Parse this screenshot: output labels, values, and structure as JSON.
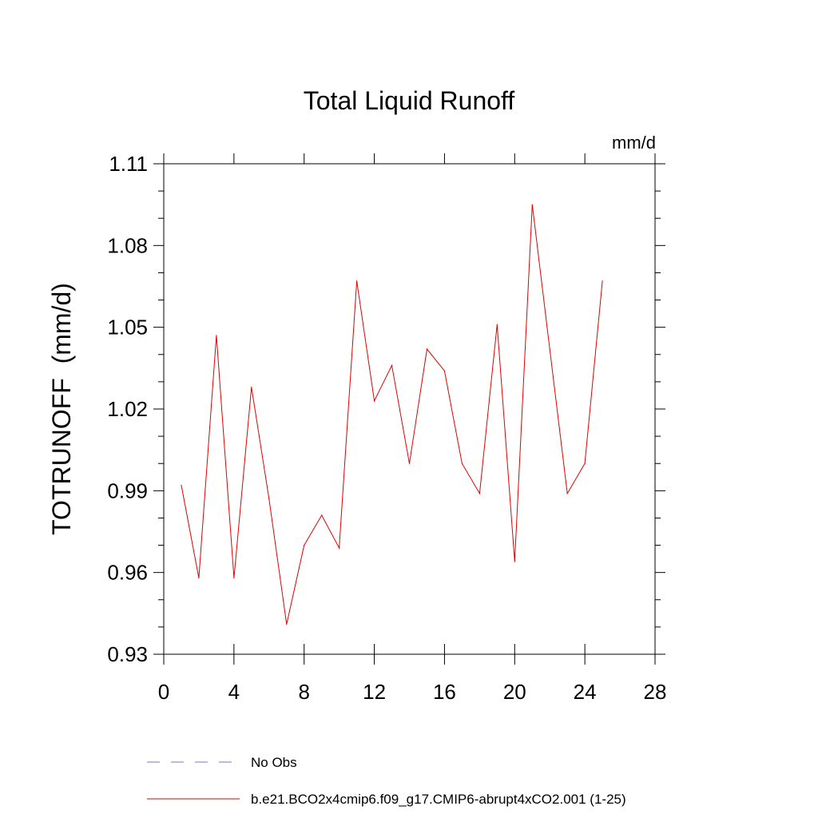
{
  "chart_data": {
    "type": "line",
    "title": "Total Liquid Runoff",
    "units_label": "mm/d",
    "ylabel": "TOTRUNOFF  (mm/d)",
    "xlabel": "",
    "xlim": [
      0,
      28
    ],
    "ylim": [
      0.93,
      1.11
    ],
    "x_ticks": [
      0,
      4,
      8,
      12,
      16,
      20,
      24,
      28
    ],
    "x_tick_labels": [
      "0",
      "4",
      "8",
      "12",
      "16",
      "20",
      "24",
      "28"
    ],
    "y_ticks": [
      0.93,
      0.96,
      0.99,
      1.02,
      1.05,
      1.08,
      1.11
    ],
    "y_tick_labels": [
      "0.93",
      "0.96",
      "0.99",
      "1.02",
      "1.05",
      "1.08",
      "1.11"
    ],
    "grid": false,
    "legend_position": "bottom",
    "series": [
      {
        "name": "b.e21.BCO2x4cmip6.f09_g17.CMIP6-abrupt4xCO2.001 (1-25)",
        "color": "#e00000",
        "style": "solid",
        "x": [
          1,
          2,
          3,
          4,
          5,
          6,
          7,
          8,
          9,
          10,
          11,
          12,
          13,
          14,
          15,
          16,
          17,
          18,
          19,
          20,
          21,
          22,
          23,
          24,
          25
        ],
        "y": [
          0.992,
          0.958,
          1.047,
          0.958,
          1.028,
          0.987,
          0.941,
          0.97,
          0.981,
          0.969,
          1.067,
          1.023,
          1.036,
          1.0,
          1.042,
          1.034,
          1.0,
          0.989,
          1.051,
          0.964,
          1.095,
          1.042,
          0.989,
          1.0,
          1.067
        ]
      }
    ],
    "legend": [
      {
        "label": "No Obs",
        "color": "#7777cc",
        "style": "dashed"
      },
      {
        "label": "b.e21.BCO2x4cmip6.f09_g17.CMIP6-abrupt4xCO2.001 (1-25)",
        "color": "#e00000",
        "style": "solid"
      }
    ]
  }
}
